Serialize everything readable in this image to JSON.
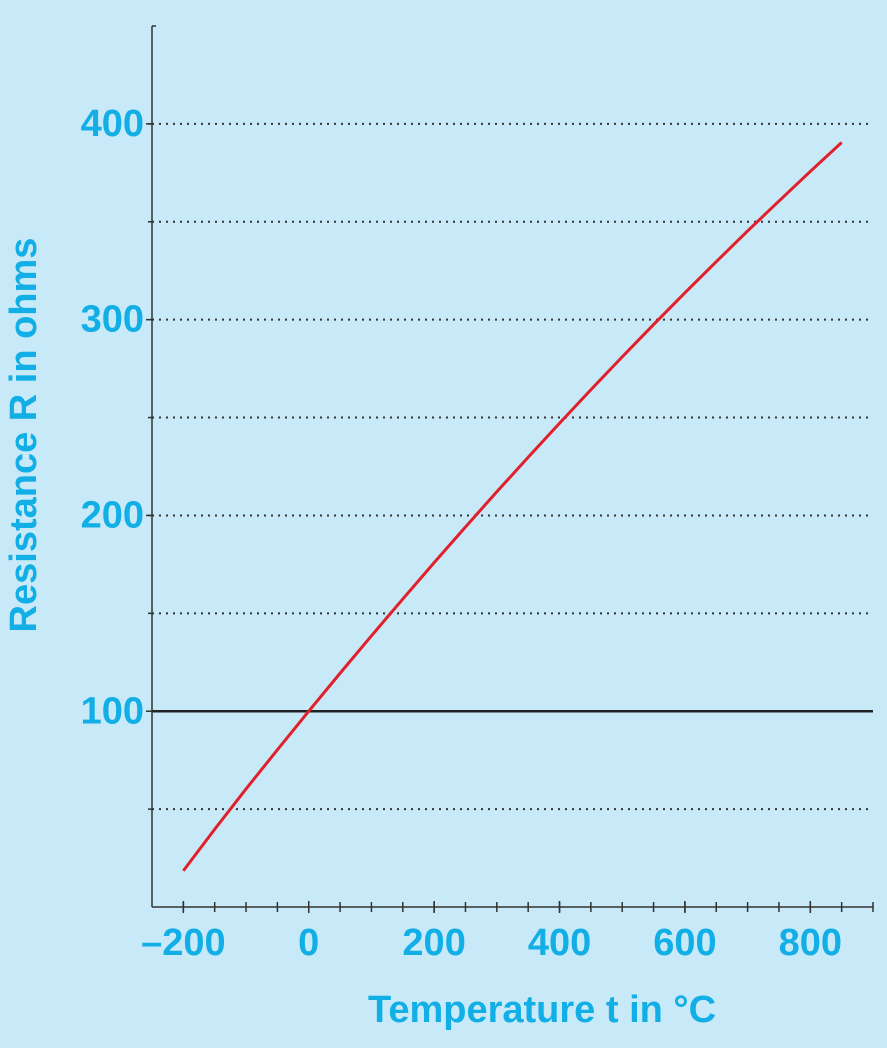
{
  "chart_data": {
    "type": "line",
    "x_label": "Temperature t in °C",
    "y_label": "Resistance R in ohms",
    "x": [
      -200,
      -150,
      -100,
      -50,
      0,
      50,
      100,
      150,
      200,
      250,
      300,
      350,
      400,
      450,
      500,
      550,
      600,
      650,
      700,
      750,
      800,
      850
    ],
    "series": [
      {
        "color": "#e0202a",
        "values": [
          18.5,
          39.7,
          60.3,
          80.3,
          100,
          119.4,
          138.5,
          157.3,
          175.9,
          194.1,
          212.1,
          229.7,
          247.1,
          264.2,
          281.0,
          297.5,
          313.7,
          329.6,
          345.3,
          360.6,
          375.7,
          390.5
        ]
      }
    ],
    "xlim": [
      -250,
      900
    ],
    "ylim": [
      0,
      450
    ],
    "xticks": [
      {
        "value": -200,
        "label": "–200"
      },
      0,
      200,
      400,
      600,
      800
    ],
    "x_minor_ticks": [
      -200,
      -150,
      -100,
      -50,
      0,
      50,
      100,
      150,
      200,
      250,
      300,
      350,
      400,
      450,
      500,
      550,
      600,
      650,
      700,
      750,
      800,
      850,
      900
    ],
    "yticks": [
      100,
      200,
      300,
      400
    ],
    "y_grid": [
      50,
      150,
      200,
      250,
      300,
      350,
      400
    ],
    "reference_y": 100,
    "grid": true
  }
}
